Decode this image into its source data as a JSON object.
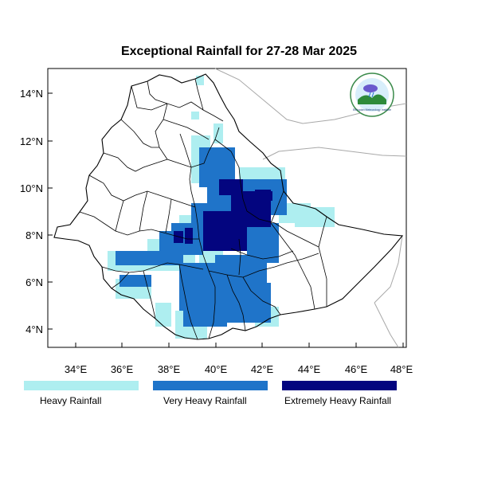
{
  "title": "Exceptional Rainfall for 27-28 Mar 2025",
  "axes": {
    "x_ticks": [
      "34°E",
      "36°E",
      "38°E",
      "40°E",
      "42°E",
      "44°E",
      "46°E",
      "48°E"
    ],
    "y_ticks": [
      "14°N",
      "12°N",
      "10°N",
      "8°N",
      "6°N",
      "4°N"
    ]
  },
  "legend": [
    {
      "label": "Heavy Rainfall",
      "color": "#aeeef0"
    },
    {
      "label": "Very Heavy Rainfall",
      "color": "#1f74c9"
    },
    {
      "label": "Extremely Heavy Rainfall",
      "color": "#03057f"
    }
  ],
  "logo": {
    "text": "Ethiopian Meteorology Institute",
    "description": "EMI circular emblem"
  },
  "colors": {
    "heavy": "#aeeef0",
    "very_heavy": "#1f74c9",
    "extremely_heavy": "#03057f",
    "boundary": "#000000",
    "neighbor_boundary": "#a8a8a8"
  }
}
